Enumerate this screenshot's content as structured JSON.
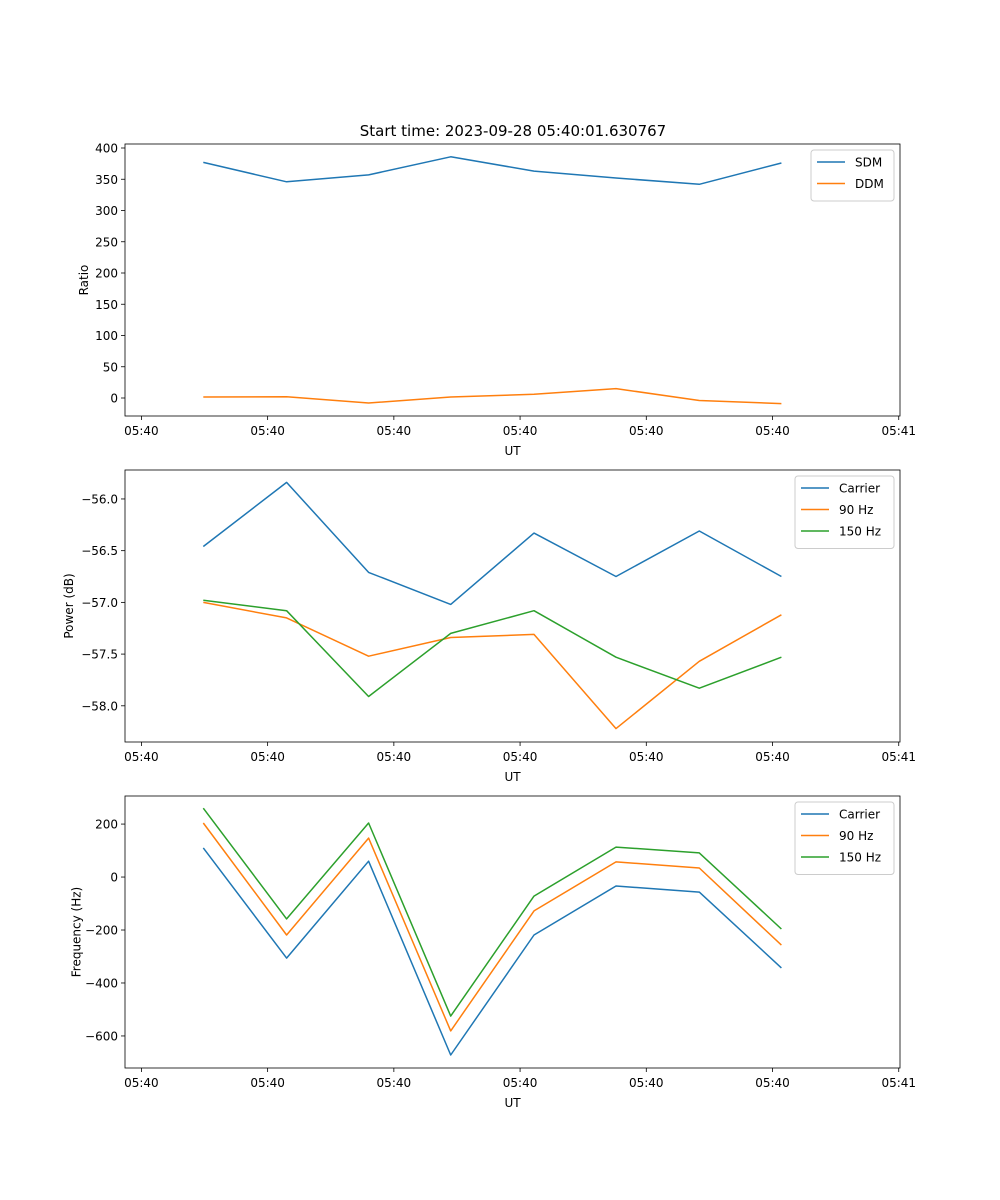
{
  "title": "Start time: 2023-09-28 05:40:01.630767",
  "chart_data": [
    {
      "type": "line",
      "xlabel": "UT",
      "ylabel": "Ratio",
      "x_unit": "seconds after 05:40:00",
      "x": [
        4.9,
        11.5,
        18.0,
        24.5,
        31.1,
        37.6,
        44.2,
        50.7
      ],
      "xlim": [
        -1.3,
        60.1
      ],
      "xticks": [
        0,
        10,
        20,
        30,
        40,
        50,
        60
      ],
      "xtick_labels": [
        "05:40",
        "05:40",
        "05:40",
        "05:40",
        "05:40",
        "05:40",
        "05:41"
      ],
      "ylim": [
        -28.8,
        406.4
      ],
      "yticks": [
        0,
        50,
        100,
        150,
        200,
        250,
        300,
        350,
        400
      ],
      "ytick_labels": [
        "0",
        "50",
        "100",
        "150",
        "200",
        "250",
        "300",
        "350",
        "400"
      ],
      "legend": "top-right",
      "series": [
        {
          "name": "SDM",
          "color": "#1f77b4",
          "values": [
            377,
            346,
            357,
            386,
            363,
            352,
            342,
            376
          ]
        },
        {
          "name": "DDM",
          "color": "#ff7f0e",
          "values": [
            1.6,
            2,
            -8,
            1.6,
            6,
            15,
            -4,
            -9
          ]
        }
      ]
    },
    {
      "type": "line",
      "xlabel": "UT",
      "ylabel": "Power (dB)",
      "x_unit": "seconds after 05:40:00",
      "x": [
        4.9,
        11.5,
        18.0,
        24.5,
        31.1,
        37.6,
        44.2,
        50.7
      ],
      "xlim": [
        -1.3,
        60.1
      ],
      "xticks": [
        0,
        10,
        20,
        30,
        40,
        50,
        60
      ],
      "xtick_labels": [
        "05:40",
        "05:40",
        "05:40",
        "05:40",
        "05:40",
        "05:40",
        "05:41"
      ],
      "ylim": [
        -58.35,
        -55.72
      ],
      "yticks": [
        -58.0,
        -57.5,
        -57.0,
        -56.5,
        -56.0
      ],
      "ytick_labels": [
        "−58.0",
        "−57.5",
        "−57.0",
        "−56.5",
        "−56.0"
      ],
      "legend": "top-right",
      "series": [
        {
          "name": "Carrier",
          "color": "#1f77b4",
          "values": [
            -56.46,
            -55.84,
            -56.71,
            -57.02,
            -56.33,
            -56.75,
            -56.31,
            -56.75
          ]
        },
        {
          "name": "90 Hz",
          "color": "#ff7f0e",
          "values": [
            -57.0,
            -57.15,
            -57.52,
            -57.34,
            -57.31,
            -58.22,
            -57.57,
            -57.12
          ]
        },
        {
          "name": "150 Hz",
          "color": "#2ca02c",
          "values": [
            -56.98,
            -57.08,
            -57.91,
            -57.3,
            -57.08,
            -57.53,
            -57.83,
            -57.53
          ]
        }
      ]
    },
    {
      "type": "line",
      "xlabel": "UT",
      "ylabel": "Frequency (Hz)",
      "x_unit": "seconds after 05:40:00",
      "x": [
        4.9,
        11.5,
        18.0,
        24.5,
        31.1,
        37.6,
        44.2,
        50.7
      ],
      "xlim": [
        -1.3,
        60.1
      ],
      "xticks": [
        0,
        10,
        20,
        30,
        40,
        50,
        60
      ],
      "xtick_labels": [
        "05:40",
        "05:40",
        "05:40",
        "05:40",
        "05:40",
        "05:40",
        "05:41"
      ],
      "ylim": [
        -721,
        306
      ],
      "yticks": [
        -600,
        -400,
        -200,
        0,
        200
      ],
      "ytick_labels": [
        "−600",
        "−400",
        "−200",
        "0",
        "200"
      ],
      "legend": "top-right",
      "series": [
        {
          "name": "Carrier",
          "color": "#1f77b4",
          "values": [
            110,
            -306,
            60,
            -672,
            -219,
            -34,
            -57,
            -343
          ]
        },
        {
          "name": "90 Hz",
          "color": "#ff7f0e",
          "values": [
            204,
            -219,
            147,
            -581,
            -128,
            57,
            34,
            -257
          ]
        },
        {
          "name": "150 Hz",
          "color": "#2ca02c",
          "values": [
            260,
            -158,
            204,
            -525,
            -72,
            113,
            91,
            -196
          ]
        }
      ]
    }
  ]
}
